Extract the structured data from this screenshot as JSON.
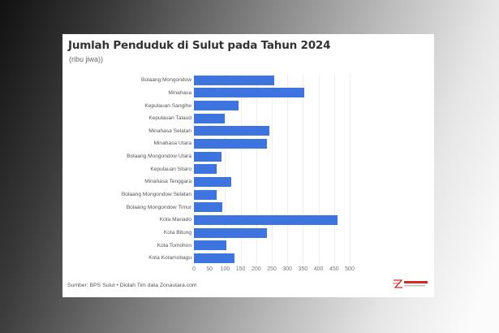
{
  "header": {
    "title": "Jumlah Penduduk di Sulut pada Tahun 2024",
    "subtitle": "(ribu jiwa))"
  },
  "footer": {
    "source": "Sumber: BPS Sulut • Diolah Tim data Zonautara.com",
    "logo_text": "ZONAUTARA.com"
  },
  "colors": {
    "bar": "#3d74e0",
    "logo": "#d62828"
  },
  "chart_data": {
    "type": "bar",
    "orientation": "horizontal",
    "title": "Jumlah Penduduk di Sulut pada Tahun 2024",
    "subtitle": "(ribu jiwa))",
    "xlabel": "",
    "ylabel": "",
    "xlim": [
      0,
      500
    ],
    "grid": true,
    "x_ticks": [
      "0",
      "50",
      "100",
      "150",
      "200",
      "250",
      "300",
      "350",
      "400",
      "450",
      "500"
    ],
    "categories": [
      "Bolaang Mongondow",
      "Minahasa",
      "Kepulauan Sangihe",
      "Kepulauan Talaud",
      "Minahasa Selatan",
      "Minahasa Utara",
      "Bolaang Mongondow Utara",
      "Kepulauan Sitaro",
      "Minahasa Tenggara",
      "Bolaang Mongondow Selatan",
      "Bolaang Mongondow Timur",
      "Kota Manado",
      "Kota Bitung",
      "Kota Tomohon",
      "Kota Kotamobagu"
    ],
    "values": [
      258,
      354,
      143,
      99,
      241,
      234,
      88,
      74,
      120,
      73,
      92,
      460,
      235,
      105,
      129
    ],
    "legend": null
  }
}
